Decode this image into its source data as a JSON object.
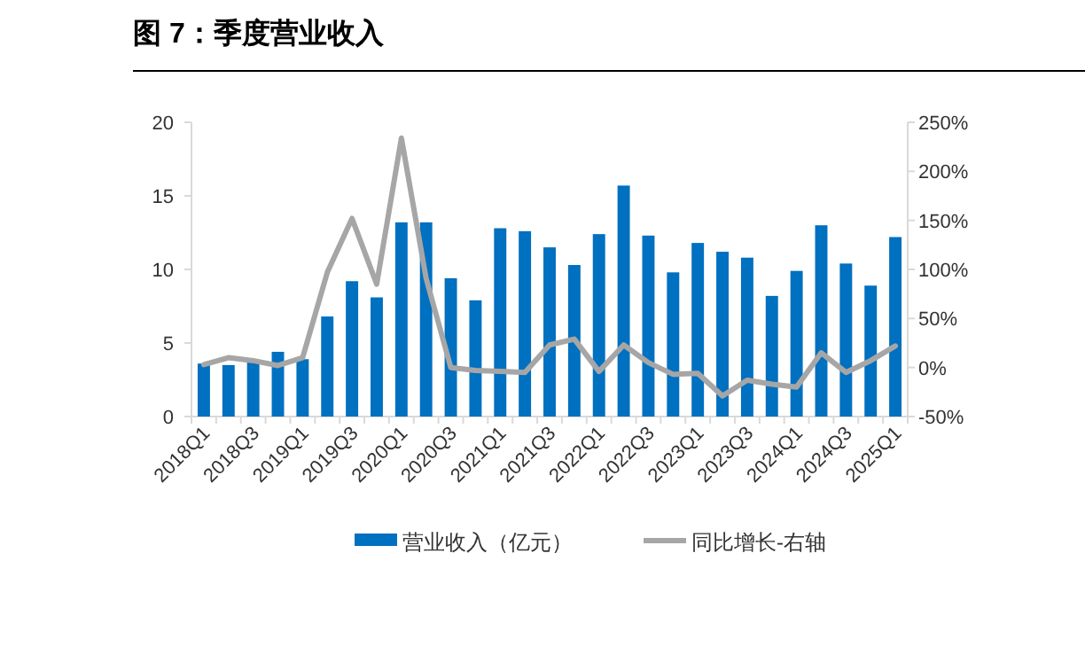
{
  "chart_data": {
    "type": "bar",
    "title": "图 7：季度营业收入",
    "categories": [
      "2018Q1",
      null,
      "2018Q3",
      null,
      "2019Q1",
      null,
      "2019Q3",
      null,
      "2020Q1",
      null,
      "2020Q3",
      null,
      "2021Q1",
      null,
      "2021Q3",
      null,
      "2022Q1",
      null,
      "2022Q3",
      null,
      "2023Q1",
      null,
      "2023Q3",
      null,
      "2024Q1",
      null,
      "2024Q3",
      null,
      "2025Q1"
    ],
    "series": [
      {
        "name": "营业收入（亿元）",
        "color": "#0070c0",
        "values": [
          3.6,
          3.5,
          3.8,
          4.4,
          3.9,
          6.8,
          9.2,
          8.1,
          13.2,
          13.2,
          9.4,
          7.9,
          12.8,
          12.6,
          11.5,
          10.3,
          12.4,
          15.7,
          12.3,
          9.8,
          11.8,
          11.2,
          10.8,
          8.2,
          9.9,
          13.0,
          10.4,
          8.9,
          12.2
        ]
      },
      {
        "name": "同比增长-右轴",
        "type": "line",
        "axis": "y2",
        "color": "#a6a6a6",
        "values": [
          3,
          10,
          7,
          2,
          10,
          97,
          152,
          85,
          234,
          91,
          0,
          -3,
          -4,
          -5,
          23,
          29,
          -4,
          23,
          5,
          -7,
          -6,
          -29,
          -13,
          -17,
          -20,
          15,
          -5,
          7,
          22
        ]
      }
    ],
    "ylim": [
      0,
      20
    ],
    "yticks": [
      0,
      5,
      10,
      15,
      20
    ],
    "y2lim": [
      -50,
      250
    ],
    "y2ticks": [
      {
        "value": -50,
        "label": "-50%"
      },
      {
        "value": 0,
        "label": "0%"
      },
      {
        "value": 50,
        "label": "50%"
      },
      {
        "value": 100,
        "label": "100%"
      },
      {
        "value": 150,
        "label": "150%"
      },
      {
        "value": 200,
        "label": "200%"
      },
      {
        "value": 250,
        "label": "250%"
      }
    ],
    "legend": "bottom",
    "grid": false,
    "marker": "none",
    "line_style": "solid"
  }
}
